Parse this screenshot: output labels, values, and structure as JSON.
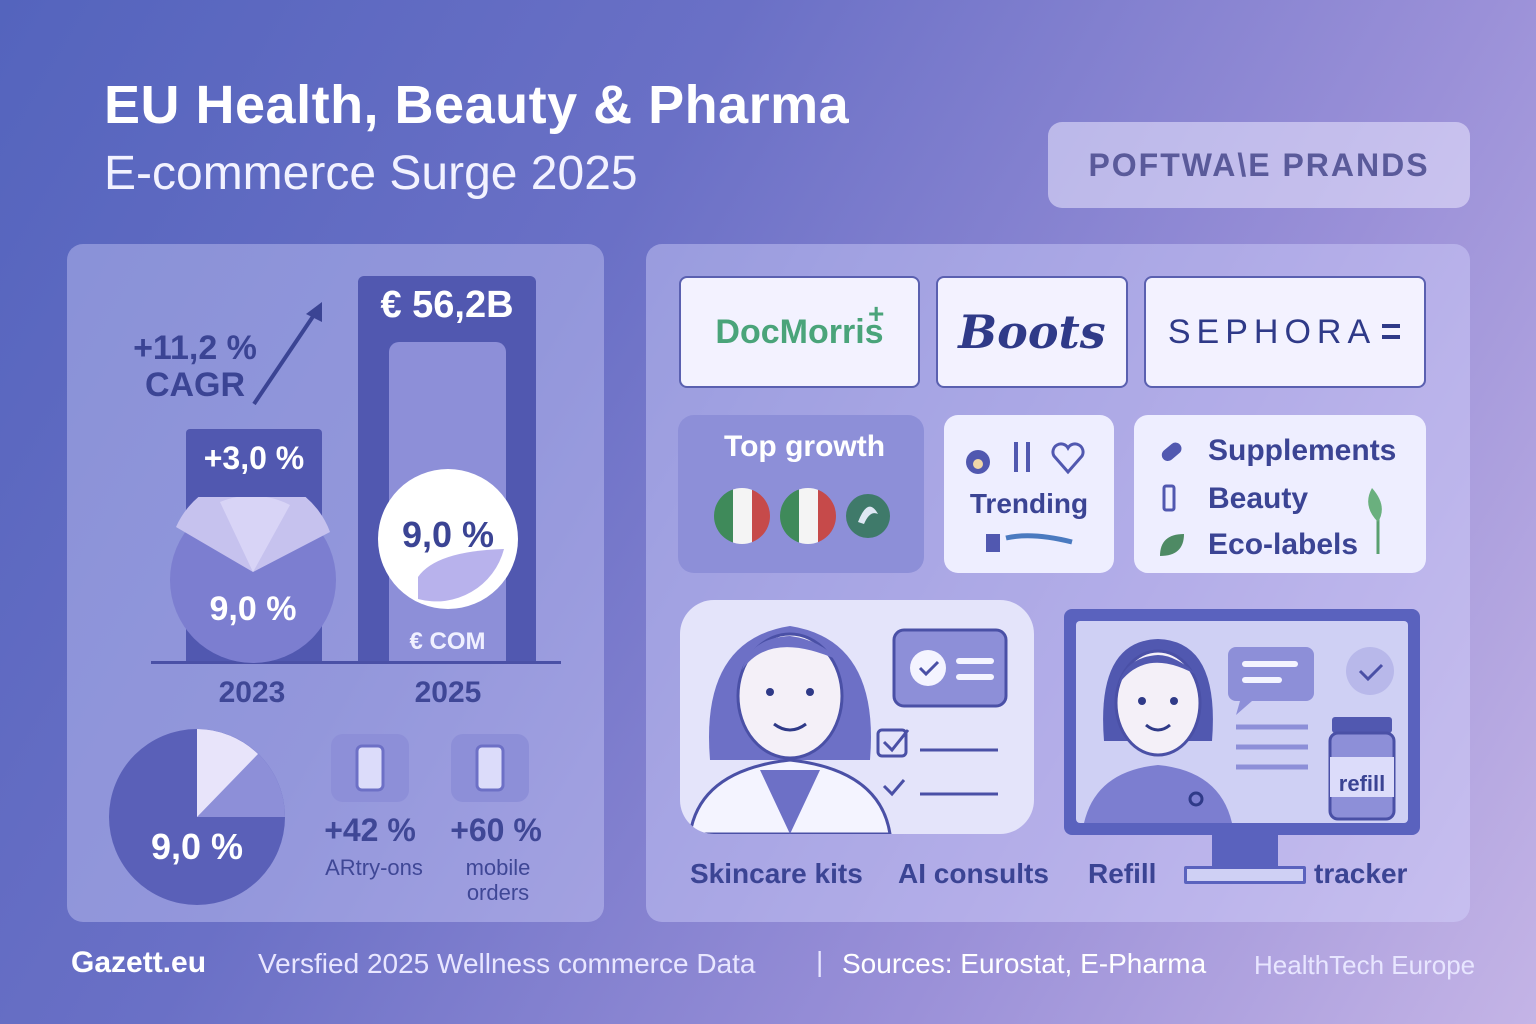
{
  "header": {
    "title_line1": "EU Health, Beauty & Pharma",
    "title_line2": "E-commerce Surge 2025",
    "brand_pill": "POFTWA\\E PRANDS"
  },
  "growth": {
    "cagr_value": "+11,2 %",
    "cagr_label": "CAGR",
    "bar_2023_label": "+3,0 %",
    "bar_2025_label": "€ 56,2B",
    "bar_2025_inner": "€ COM",
    "pie_2023": "9,0 %",
    "pie_2025": "9,0 %",
    "year_2023": "2023",
    "year_2025": "2025"
  },
  "mobile": {
    "pie_value": "9,0 %",
    "ar_value": "+42 %",
    "ar_label": "ARtry-ons",
    "mobile_value": "+60 %",
    "mobile_label_1": "mobile",
    "mobile_label_2": "orders"
  },
  "brands": {
    "docmorris": "DocMorris",
    "boots": "Boots",
    "sephora": "SEPHORA"
  },
  "cards": {
    "top_growth": "Top growth",
    "trending": "Trending",
    "categories": [
      "Supplements",
      "Beauty",
      "Eco-labels"
    ]
  },
  "features": {
    "skincare": "Skincare kits",
    "ai": "AI consults",
    "refill": "Refill",
    "tracker": "tracker",
    "bottle_label": "refill"
  },
  "footer": {
    "brand": "Gazett.eu",
    "verified": "Versfied 2025 Wellness commerce Data",
    "separator": "|",
    "sources": "Sources: Eurostat, E-Pharma",
    "org": "HealthTech Europe"
  },
  "colors": {
    "accent_dark": "#5158b0",
    "accent_light": "#8d8fd8",
    "text_dark": "#3b4494",
    "docmorris_green": "#4aa47a"
  }
}
